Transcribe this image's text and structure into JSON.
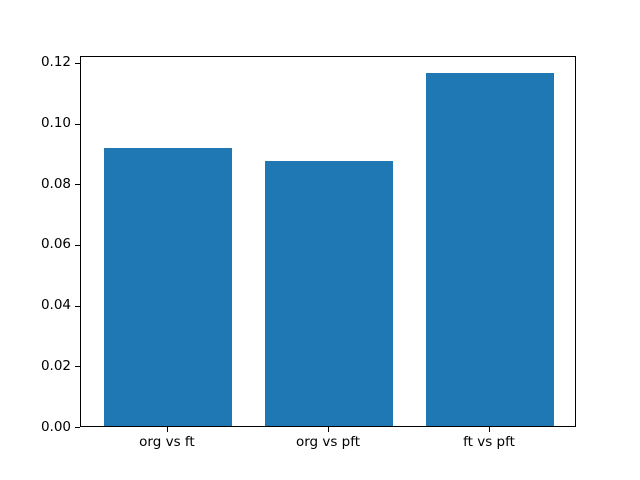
{
  "chart_data": {
    "type": "bar",
    "title": "",
    "xlabel": "",
    "ylabel": "",
    "categories": [
      "org vs ft",
      "org vs pft",
      "ft vs pft"
    ],
    "values": [
      0.0915,
      0.0875,
      0.1163
    ],
    "bar_color": "#1f77b4",
    "bar_width_fraction": 0.8,
    "xlim": [
      -0.54,
      2.54
    ],
    "ylim": [
      0,
      0.1223
    ],
    "yticks": [
      0.0,
      0.02,
      0.04,
      0.06,
      0.08,
      0.1,
      0.12
    ],
    "ytick_labels": [
      "0.00",
      "0.02",
      "0.04",
      "0.06",
      "0.08",
      "0.10",
      "0.12"
    ],
    "grid": false,
    "legend": null
  },
  "colors": {
    "background": "#ffffff",
    "spine": "#000000",
    "tick_text": "#000000"
  }
}
